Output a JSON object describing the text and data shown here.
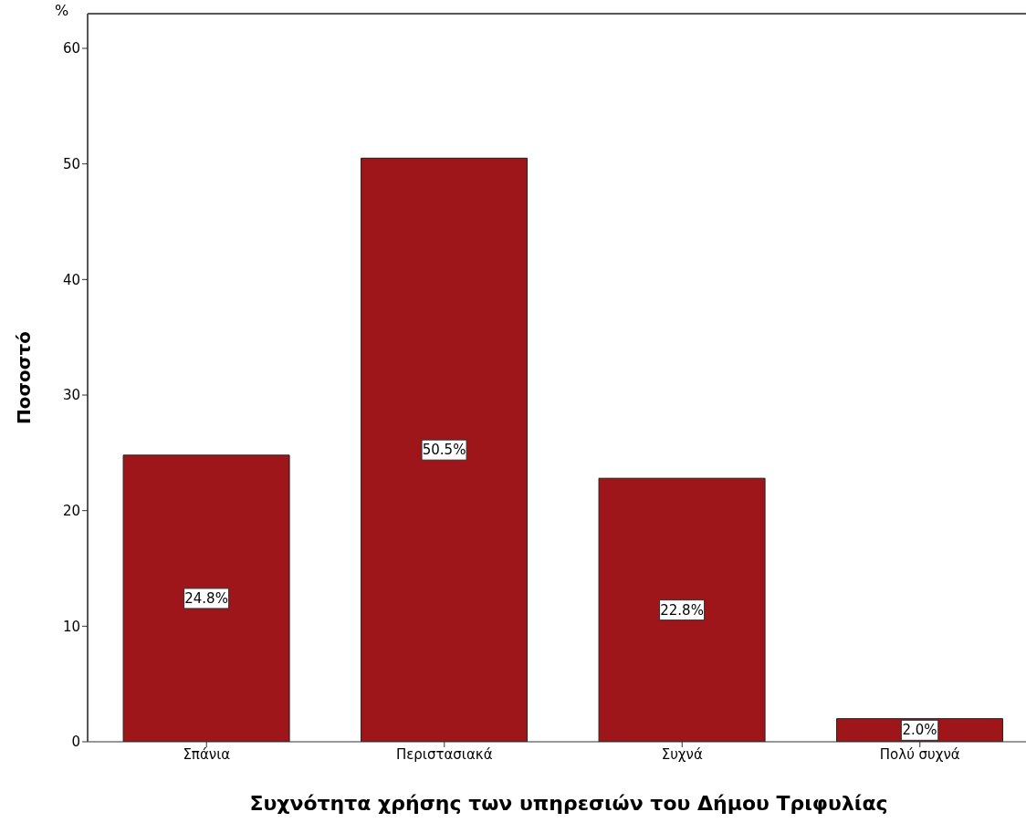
{
  "chart_data": {
    "type": "bar",
    "title": "%",
    "xlabel": "Συχνότητα χρήσης των υπηρεσιών του Δήμου Τριφυλίας",
    "ylabel": "Ποσοστό",
    "categories": [
      "Σπάνια",
      "Περιστασιακά",
      "Συχνά",
      "Πολύ συχνά"
    ],
    "values": [
      24.8,
      50.5,
      22.8,
      2.0
    ],
    "value_labels": [
      "24.8%",
      "50.5%",
      "22.8%",
      "2.0%"
    ],
    "color": "#9e1619",
    "ylim": [
      0,
      63
    ],
    "yticks": [
      0,
      10,
      20,
      30,
      40,
      50,
      60
    ],
    "grid": false
  }
}
